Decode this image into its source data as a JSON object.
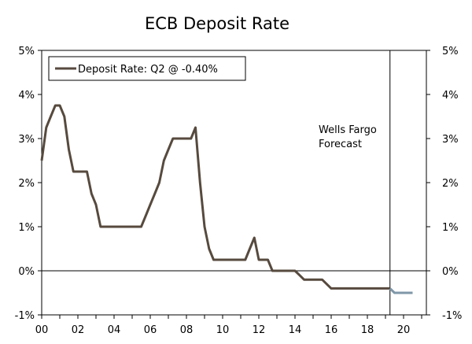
{
  "chart_data": {
    "type": "line",
    "title": "ECB Deposit Rate",
    "xlabel": "",
    "ylabel": "",
    "x_ticks": [
      "00",
      "02",
      "04",
      "06",
      "08",
      "10",
      "12",
      "14",
      "16",
      "18",
      "20"
    ],
    "y_ticks_left": [
      "5%",
      "4%",
      "3%",
      "2%",
      "1%",
      "0%",
      "-1%"
    ],
    "y_ticks_right": [
      "5%",
      "4%",
      "3%",
      "2%",
      "1%",
      "0%",
      "-1%"
    ],
    "xlim": [
      2000,
      2021.4
    ],
    "ylim": [
      -1,
      5
    ],
    "grid": false,
    "legend": {
      "position": "top-left",
      "label": "Deposit Rate: Q2 @ -0.40%"
    },
    "annotation": {
      "line1": "Wells Fargo",
      "line2": "Forecast"
    },
    "forecast_start": 2019.25,
    "colors": {
      "actual": "#574a3e",
      "forecast": "#7f97a8"
    },
    "series": [
      {
        "name": "Deposit Rate: Q2 @ -0.40%",
        "points": [
          [
            2000.0,
            2.5
          ],
          [
            2000.25,
            3.25
          ],
          [
            2000.5,
            3.5
          ],
          [
            2000.75,
            3.75
          ],
          [
            2001.0,
            3.75
          ],
          [
            2001.25,
            3.5
          ],
          [
            2001.5,
            2.75
          ],
          [
            2001.75,
            2.25
          ],
          [
            2002.0,
            2.25
          ],
          [
            2002.5,
            2.25
          ],
          [
            2002.75,
            1.75
          ],
          [
            2003.0,
            1.5
          ],
          [
            2003.25,
            1.0
          ],
          [
            2005.5,
            1.0
          ],
          [
            2005.75,
            1.25
          ],
          [
            2006.0,
            1.5
          ],
          [
            2006.25,
            1.75
          ],
          [
            2006.5,
            2.0
          ],
          [
            2006.75,
            2.5
          ],
          [
            2007.0,
            2.75
          ],
          [
            2007.25,
            3.0
          ],
          [
            2008.25,
            3.0
          ],
          [
            2008.5,
            3.25
          ],
          [
            2008.75,
            2.0
          ],
          [
            2009.0,
            1.0
          ],
          [
            2009.25,
            0.5
          ],
          [
            2009.5,
            0.25
          ],
          [
            2011.25,
            0.25
          ],
          [
            2011.5,
            0.5
          ],
          [
            2011.75,
            0.75
          ],
          [
            2012.0,
            0.25
          ],
          [
            2012.5,
            0.25
          ],
          [
            2012.75,
            0.0
          ],
          [
            2014.0,
            0.0
          ],
          [
            2014.25,
            -0.1
          ],
          [
            2014.5,
            -0.2
          ],
          [
            2015.5,
            -0.2
          ],
          [
            2016.0,
            -0.4
          ],
          [
            2019.25,
            -0.4
          ]
        ]
      },
      {
        "name": "Forecast",
        "points": [
          [
            2019.25,
            -0.4
          ],
          [
            2019.5,
            -0.5
          ],
          [
            2020.5,
            -0.5
          ]
        ]
      }
    ]
  }
}
